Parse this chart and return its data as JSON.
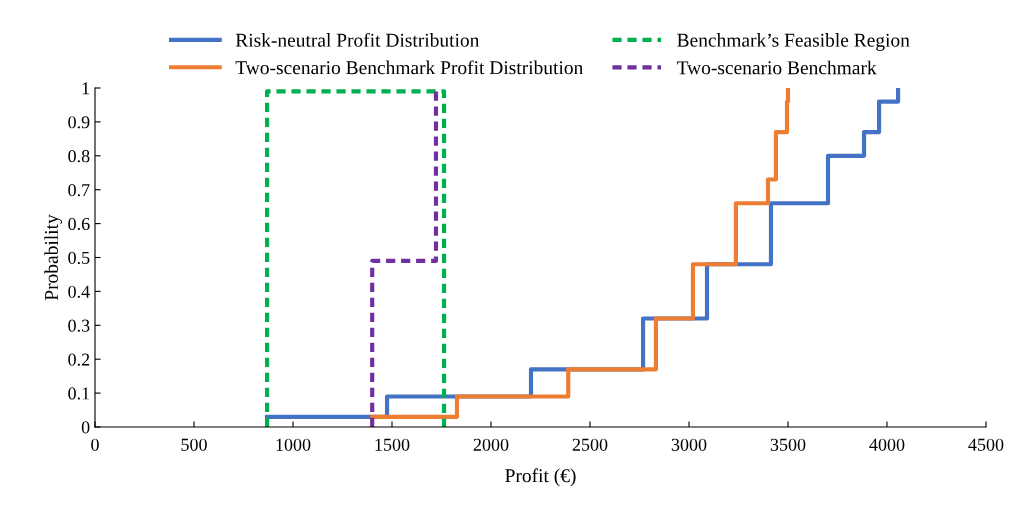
{
  "chart_data": {
    "type": "step",
    "xlabel": "Profit (€)",
    "ylabel": "Probability",
    "xlim": [
      0,
      4500
    ],
    "xticks": [
      0,
      500,
      1000,
      1500,
      2000,
      2500,
      3000,
      3500,
      4000,
      4500
    ],
    "ylim": [
      0,
      1
    ],
    "yticks": [
      0,
      0.1,
      0.2,
      0.3,
      0.4,
      0.5,
      0.6,
      0.7,
      0.8,
      0.9,
      1
    ],
    "grid": false,
    "legend": "top",
    "series": [
      {
        "name": "Risk-neutral Profit Distribution",
        "color": "#4472c4",
        "line_style": "solid",
        "x": [
          869,
          1475,
          2202,
          2768,
          3091,
          3414,
          3702,
          3884,
          3960,
          4056
        ],
        "values": [
          0.03,
          0.09,
          0.17,
          0.32,
          0.48,
          0.66,
          0.8,
          0.87,
          0.96,
          1.0
        ]
      },
      {
        "name": "Two-scenario Benchmark Profit Distribution",
        "color": "#ed7d31",
        "line_style": "solid",
        "x": [
          1400,
          1828,
          2390,
          2833,
          3020,
          3237,
          3399,
          3439,
          3495,
          3500
        ],
        "values": [
          0.03,
          0.09,
          0.17,
          0.32,
          0.48,
          0.66,
          0.73,
          0.87,
          0.96,
          1.0
        ]
      },
      {
        "name": "Benchmark’s Feasible Region",
        "color": "#00b050",
        "type": "line",
        "line_style": "dashed",
        "x": [
          869,
          869,
          1763,
          1763
        ],
        "values": [
          0,
          0.99,
          0.99,
          0
        ]
      },
      {
        "name": "Two-scenario Benchmark",
        "color": "#7030a0",
        "type": "line",
        "line_style": "dashed",
        "x": [
          1400,
          1400,
          1722,
          1722
        ],
        "values": [
          0,
          0.49,
          0.49,
          0.99
        ]
      }
    ]
  }
}
